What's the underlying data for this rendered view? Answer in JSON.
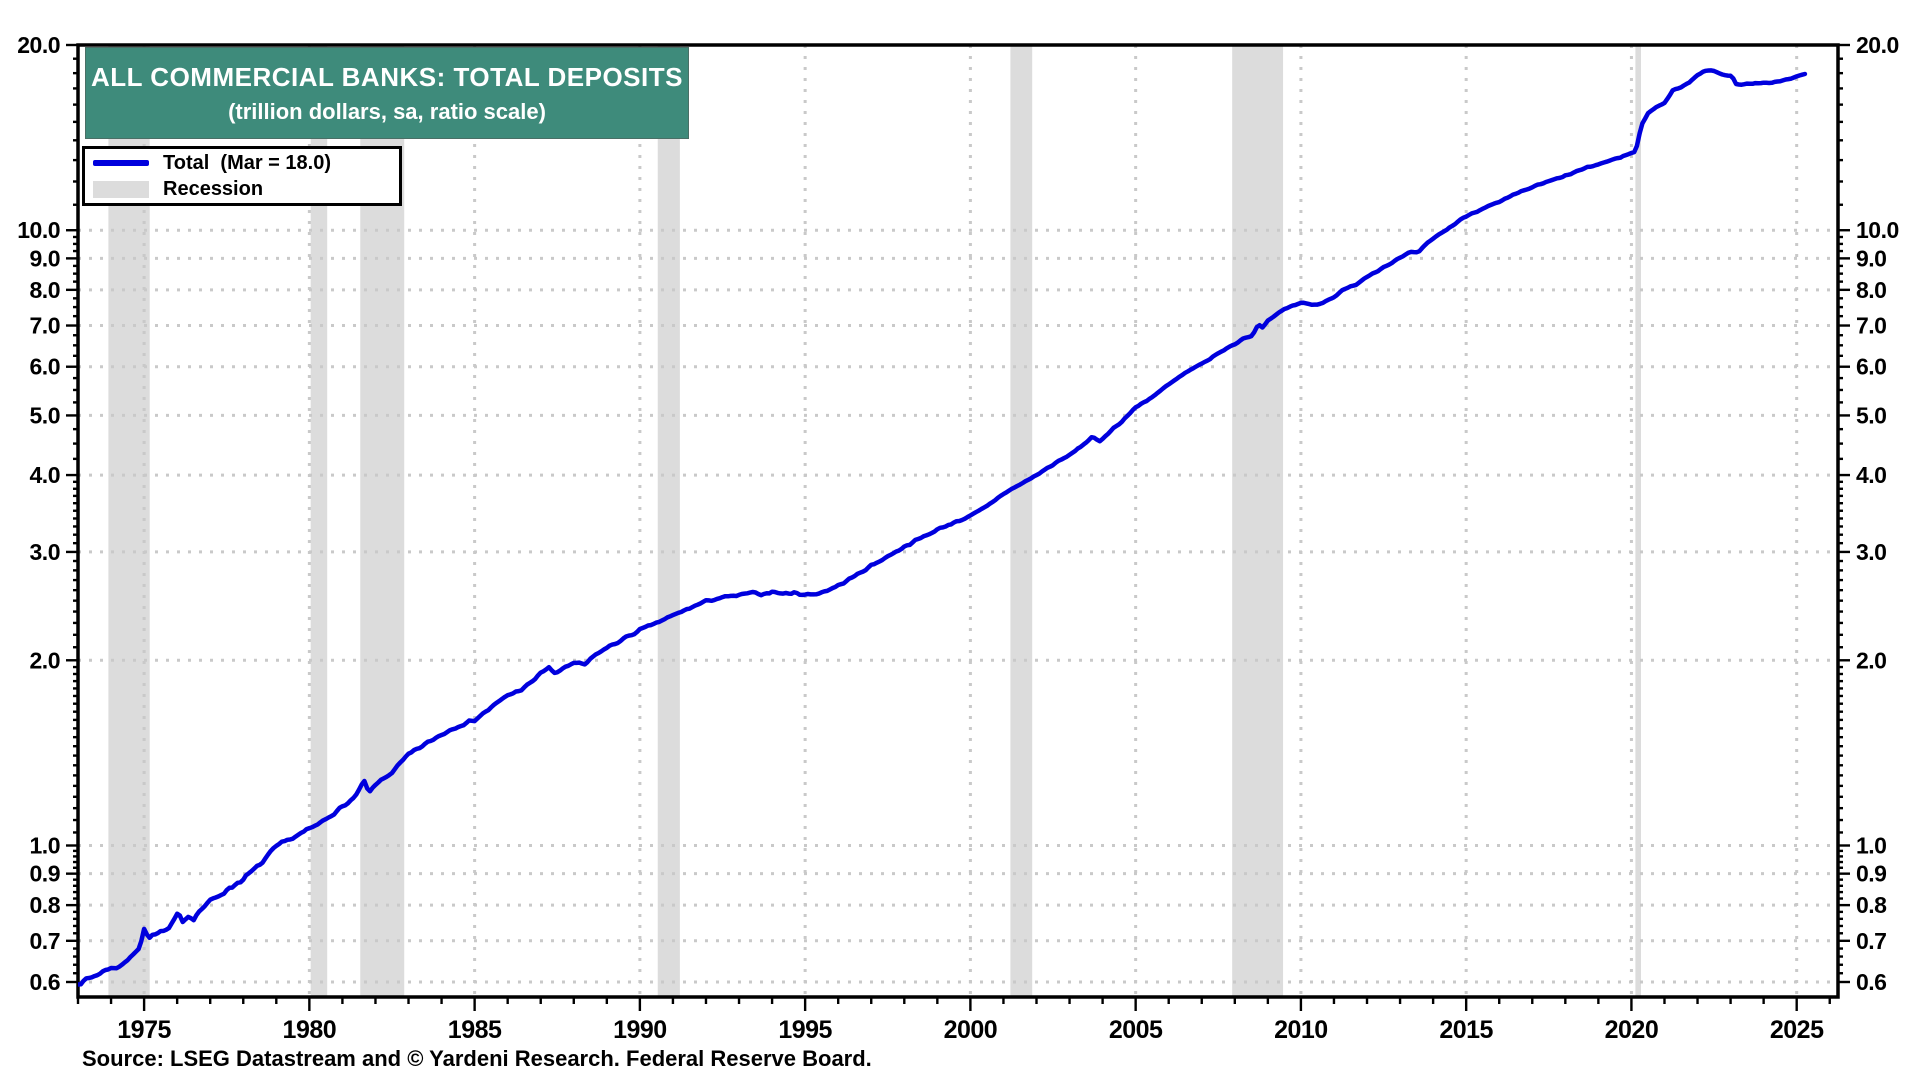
{
  "chart_data": {
    "type": "line",
    "title": "ALL COMMERCIAL BANKS: TOTAL DEPOSITS",
    "subtitle": "(trillion dollars, sa, ratio scale)",
    "source": "Source: LSEG Datastream and © Yardeni Research. Federal Reserve Board.",
    "colors": {
      "title_bg": "#3e8b7b",
      "line": "#0000dd",
      "recession": "#dcdcdc",
      "grid": "#c9c9c9",
      "axis": "#000000"
    },
    "y_scale": "log",
    "grid": "dotted",
    "x_range": [
      1973,
      2026.25
    ],
    "y_range": [
      0.568,
      20.0
    ],
    "x_major_ticks": [
      1975,
      1980,
      1985,
      1990,
      1995,
      2000,
      2005,
      2010,
      2015,
      2020,
      2025
    ],
    "x_minor_step": 1,
    "y_ticks": [
      {
        "v": 20.0,
        "label": "20.0"
      },
      {
        "v": 10.0,
        "label": "10.0"
      },
      {
        "v": 9.0,
        "label": "9.0"
      },
      {
        "v": 8.0,
        "label": "8.0"
      },
      {
        "v": 7.0,
        "label": "7.0"
      },
      {
        "v": 6.0,
        "label": "6.0"
      },
      {
        "v": 5.0,
        "label": "5.0"
      },
      {
        "v": 4.0,
        "label": "4.0"
      },
      {
        "v": 3.0,
        "label": "3.0"
      },
      {
        "v": 2.0,
        "label": "2.0"
      },
      {
        "v": 1.0,
        "label": "1.0"
      },
      {
        "v": 0.9,
        "label": "0.9"
      },
      {
        "v": 0.8,
        "label": "0.8"
      },
      {
        "v": 0.7,
        "label": "0.7"
      },
      {
        "v": 0.6,
        "label": "0.6"
      }
    ],
    "legend": [
      {
        "label": "Total  (Mar = 18.0)",
        "swatch": "line",
        "color": "#0000dd"
      },
      {
        "label": "Recession",
        "swatch": "box",
        "color": "#dcdcdc"
      }
    ],
    "recessions": [
      [
        1973.92,
        1975.17
      ],
      [
        1980.04,
        1980.54
      ],
      [
        1981.54,
        1982.87
      ],
      [
        1990.54,
        1991.21
      ],
      [
        2001.21,
        2001.87
      ],
      [
        2007.92,
        2009.46
      ],
      [
        2020.12,
        2020.29
      ]
    ],
    "series": [
      {
        "name": "Total",
        "latest_label": "Mar = 18.0",
        "color": "#0000dd",
        "points": [
          [
            1973.0,
            0.597
          ],
          [
            1973.25,
            0.605
          ],
          [
            1973.5,
            0.614
          ],
          [
            1973.75,
            0.623
          ],
          [
            1973.95,
            0.634
          ],
          [
            1974.1,
            0.63
          ],
          [
            1974.35,
            0.643
          ],
          [
            1974.6,
            0.658
          ],
          [
            1974.85,
            0.68
          ],
          [
            1974.95,
            0.715
          ],
          [
            1975.02,
            0.745
          ],
          [
            1975.12,
            0.706
          ],
          [
            1975.3,
            0.717
          ],
          [
            1975.5,
            0.723
          ],
          [
            1975.75,
            0.73
          ],
          [
            1975.95,
            0.762
          ],
          [
            1976.05,
            0.778
          ],
          [
            1976.15,
            0.755
          ],
          [
            1976.35,
            0.768
          ],
          [
            1976.5,
            0.762
          ],
          [
            1976.75,
            0.79
          ],
          [
            1977.0,
            0.812
          ],
          [
            1977.5,
            0.846
          ],
          [
            1978.0,
            0.882
          ],
          [
            1978.5,
            0.93
          ],
          [
            1979.0,
            0.995
          ],
          [
            1979.5,
            1.03
          ],
          [
            1980.0,
            1.062
          ],
          [
            1980.3,
            1.085
          ],
          [
            1980.6,
            1.115
          ],
          [
            1981.0,
            1.155
          ],
          [
            1981.4,
            1.2
          ],
          [
            1981.65,
            1.275
          ],
          [
            1981.8,
            1.215
          ],
          [
            1982.0,
            1.255
          ],
          [
            1982.5,
            1.315
          ],
          [
            1983.0,
            1.405
          ],
          [
            1983.5,
            1.46
          ],
          [
            1984.0,
            1.515
          ],
          [
            1984.5,
            1.565
          ],
          [
            1985.0,
            1.6
          ],
          [
            1985.5,
            1.675
          ],
          [
            1986.0,
            1.755
          ],
          [
            1986.35,
            1.785
          ],
          [
            1986.7,
            1.835
          ],
          [
            1987.05,
            1.92
          ],
          [
            1987.25,
            1.945
          ],
          [
            1987.45,
            1.895
          ],
          [
            1987.7,
            1.95
          ],
          [
            1988.0,
            1.975
          ],
          [
            1988.35,
            1.97
          ],
          [
            1988.7,
            2.05
          ],
          [
            1989.0,
            2.095
          ],
          [
            1989.5,
            2.165
          ],
          [
            1990.0,
            2.24
          ],
          [
            1990.5,
            2.3
          ],
          [
            1991.0,
            2.365
          ],
          [
            1991.5,
            2.43
          ],
          [
            1992.0,
            2.495
          ],
          [
            1992.5,
            2.53
          ],
          [
            1993.0,
            2.55
          ],
          [
            1993.35,
            2.575
          ],
          [
            1993.7,
            2.56
          ],
          [
            1994.0,
            2.585
          ],
          [
            1994.35,
            2.565
          ],
          [
            1994.7,
            2.575
          ],
          [
            1995.0,
            2.555
          ],
          [
            1995.35,
            2.565
          ],
          [
            1995.7,
            2.6
          ],
          [
            1996.0,
            2.645
          ],
          [
            1996.5,
            2.74
          ],
          [
            1997.0,
            2.85
          ],
          [
            1997.5,
            2.95
          ],
          [
            1998.0,
            3.06
          ],
          [
            1998.5,
            3.16
          ],
          [
            1999.0,
            3.26
          ],
          [
            1999.5,
            3.35
          ],
          [
            2000.0,
            3.43
          ],
          [
            2000.5,
            3.56
          ],
          [
            2001.0,
            3.73
          ],
          [
            2001.5,
            3.86
          ],
          [
            2002.0,
            4.0
          ],
          [
            2002.5,
            4.16
          ],
          [
            2003.0,
            4.31
          ],
          [
            2003.45,
            4.5
          ],
          [
            2003.7,
            4.61
          ],
          [
            2003.9,
            4.53
          ],
          [
            2004.2,
            4.7
          ],
          [
            2004.6,
            4.9
          ],
          [
            2005.0,
            5.15
          ],
          [
            2005.5,
            5.36
          ],
          [
            2006.0,
            5.61
          ],
          [
            2006.5,
            5.86
          ],
          [
            2007.0,
            6.06
          ],
          [
            2007.5,
            6.31
          ],
          [
            2007.95,
            6.51
          ],
          [
            2008.25,
            6.66
          ],
          [
            2008.55,
            6.76
          ],
          [
            2008.72,
            7.05
          ],
          [
            2008.85,
            6.95
          ],
          [
            2009.0,
            7.14
          ],
          [
            2009.3,
            7.32
          ],
          [
            2009.55,
            7.46
          ],
          [
            2009.8,
            7.56
          ],
          [
            2010.05,
            7.62
          ],
          [
            2010.35,
            7.56
          ],
          [
            2010.65,
            7.62
          ],
          [
            2011.0,
            7.8
          ],
          [
            2011.3,
            8.0
          ],
          [
            2011.65,
            8.16
          ],
          [
            2012.0,
            8.41
          ],
          [
            2012.5,
            8.71
          ],
          [
            2013.0,
            9.01
          ],
          [
            2013.35,
            9.22
          ],
          [
            2013.55,
            9.18
          ],
          [
            2013.8,
            9.5
          ],
          [
            2014.0,
            9.7
          ],
          [
            2014.5,
            10.1
          ],
          [
            2015.0,
            10.55
          ],
          [
            2015.5,
            10.85
          ],
          [
            2016.0,
            11.1
          ],
          [
            2016.5,
            11.45
          ],
          [
            2017.0,
            11.75
          ],
          [
            2017.5,
            12.0
          ],
          [
            2018.0,
            12.25
          ],
          [
            2018.5,
            12.55
          ],
          [
            2019.0,
            12.8
          ],
          [
            2019.5,
            13.05
          ],
          [
            2020.0,
            13.35
          ],
          [
            2020.13,
            13.42
          ],
          [
            2020.3,
            14.8
          ],
          [
            2020.5,
            15.5
          ],
          [
            2020.75,
            15.85
          ],
          [
            2021.0,
            16.1
          ],
          [
            2021.25,
            16.85
          ],
          [
            2021.5,
            17.1
          ],
          [
            2021.75,
            17.4
          ],
          [
            2022.0,
            17.9
          ],
          [
            2022.2,
            18.12
          ],
          [
            2022.45,
            18.18
          ],
          [
            2022.65,
            18.02
          ],
          [
            2022.85,
            17.85
          ],
          [
            2023.05,
            17.78
          ],
          [
            2023.17,
            17.3
          ],
          [
            2023.35,
            17.25
          ],
          [
            2023.6,
            17.3
          ],
          [
            2023.85,
            17.32
          ],
          [
            2024.1,
            17.35
          ],
          [
            2024.35,
            17.42
          ],
          [
            2024.6,
            17.52
          ],
          [
            2024.85,
            17.65
          ],
          [
            2025.05,
            17.8
          ],
          [
            2025.25,
            17.97
          ]
        ]
      }
    ]
  }
}
